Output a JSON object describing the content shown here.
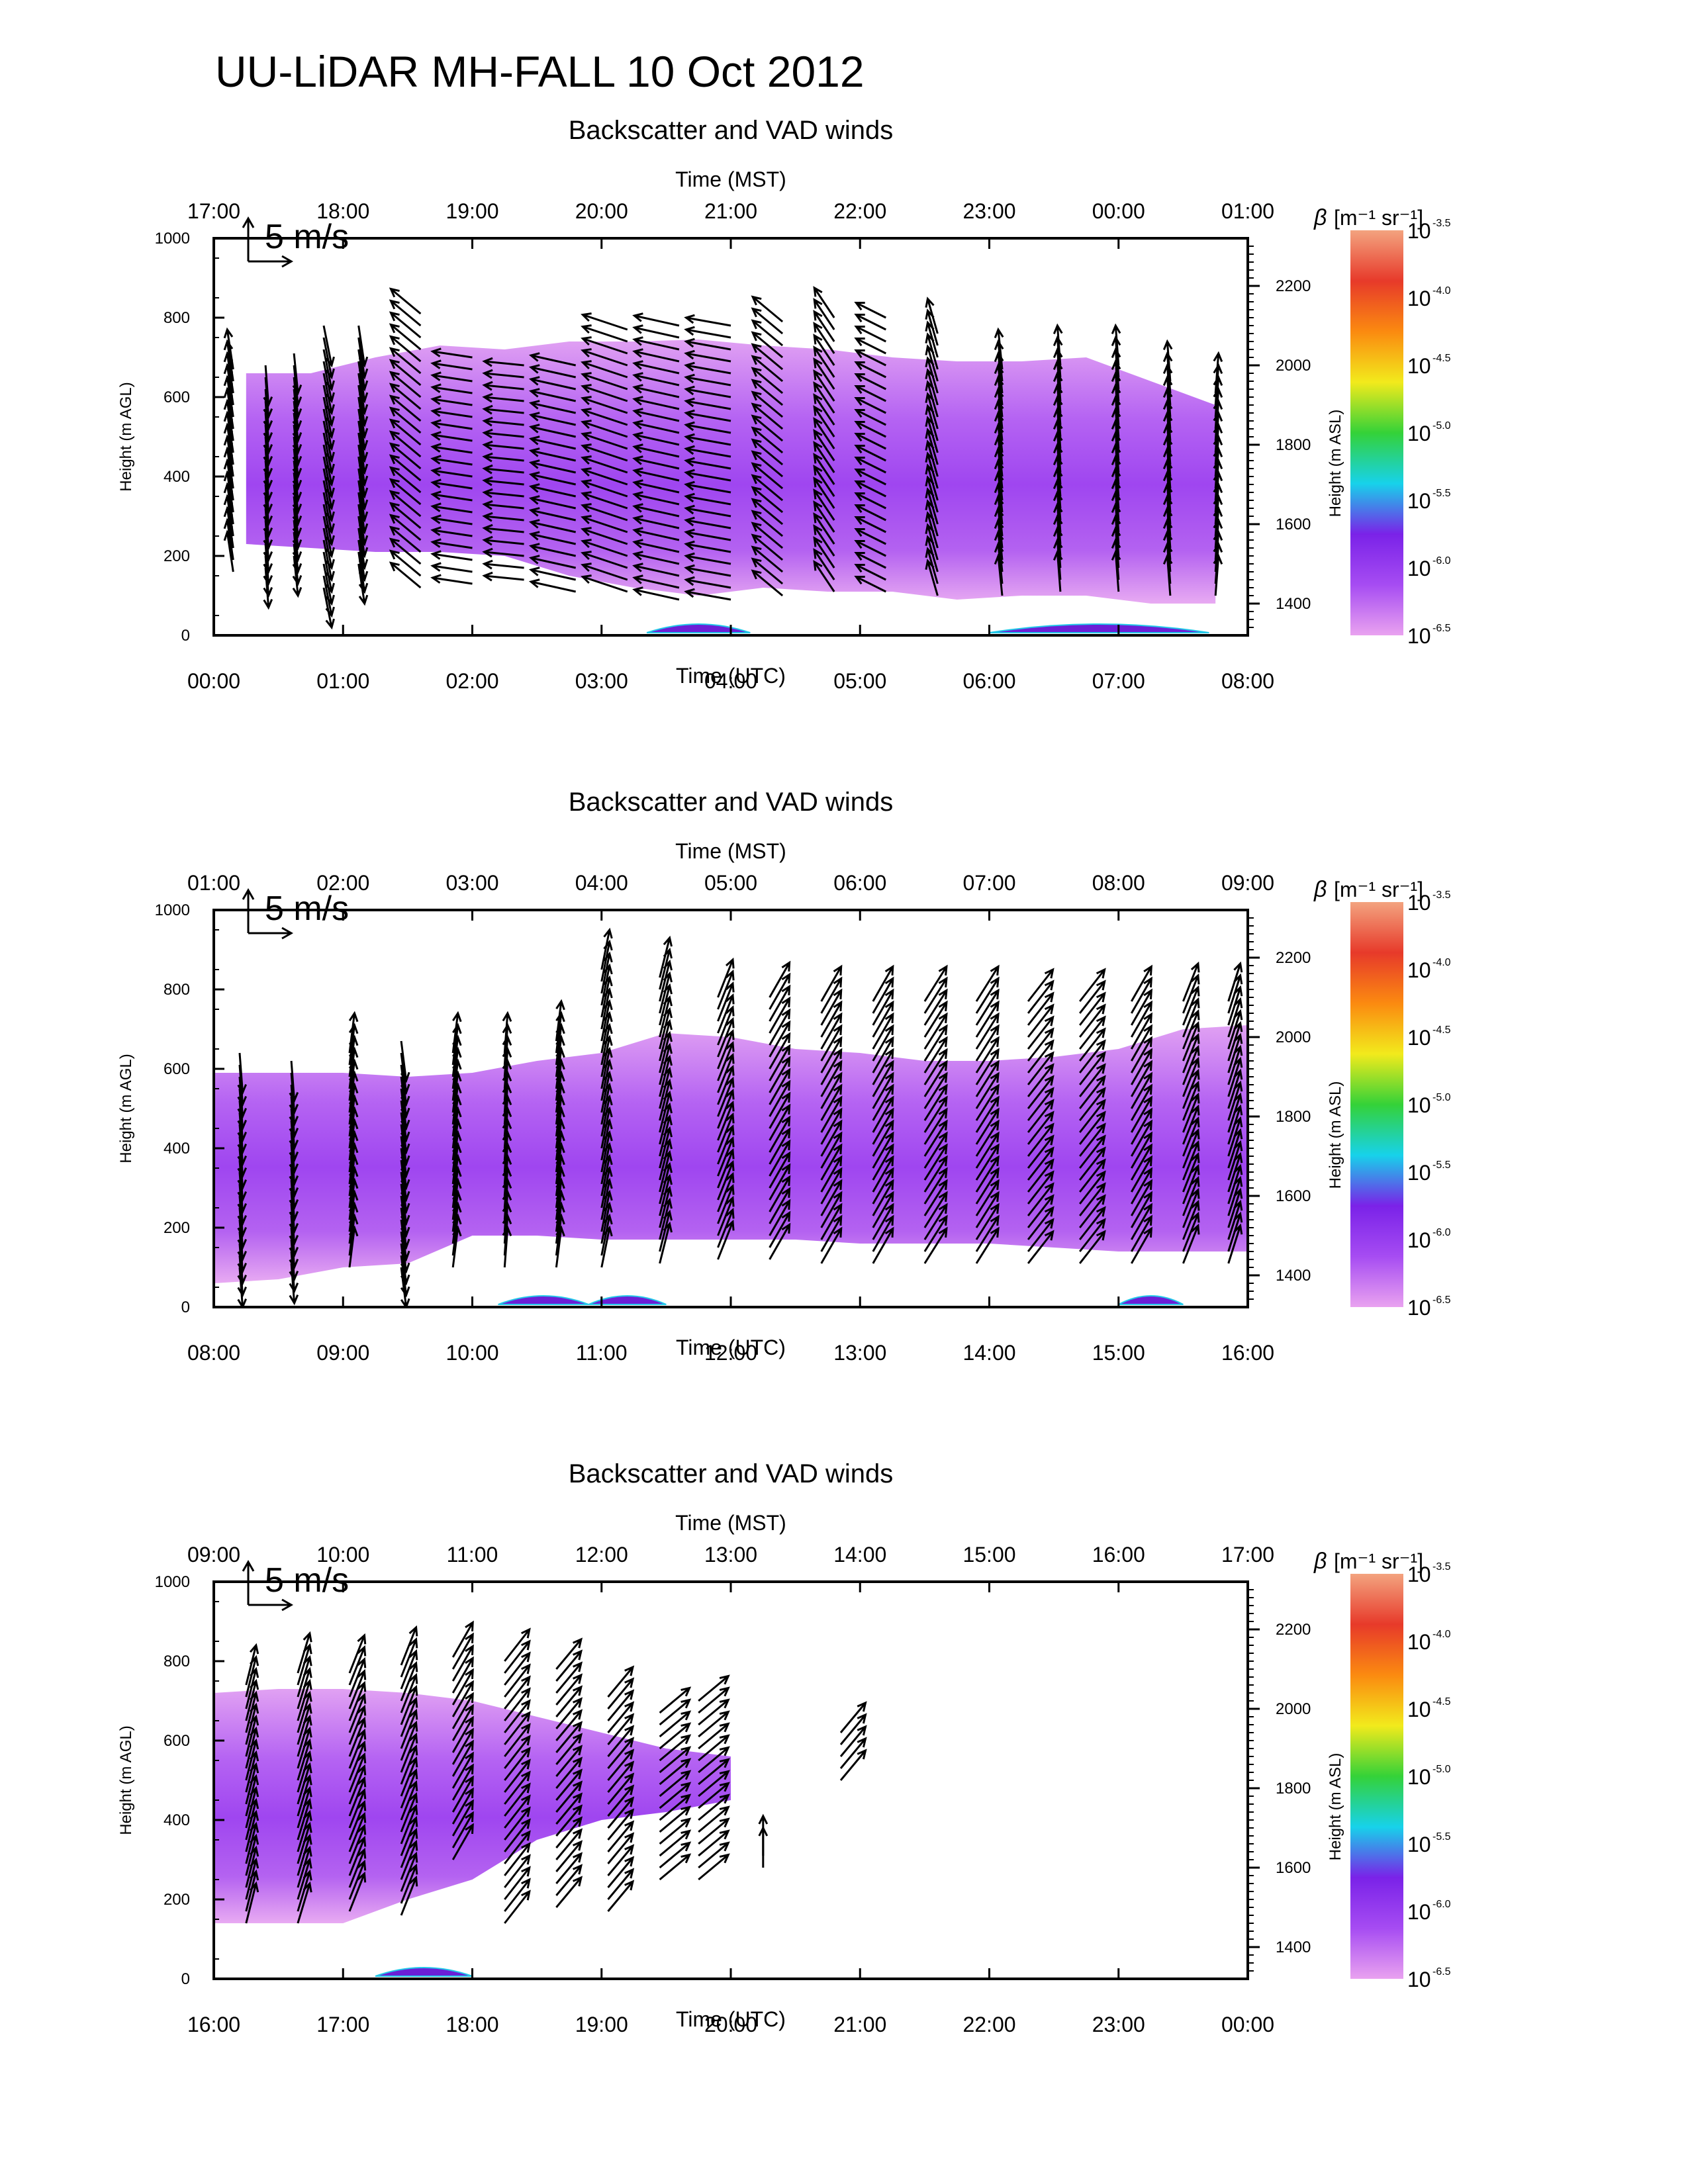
{
  "main_title": "UU-LiDAR MH-FALL 10 Oct 2012",
  "colorbar": {
    "label_beta": "β",
    "label_units": "[m⁻¹ sr⁻¹]",
    "tick_labels": [
      {
        "base": "10",
        "exp": "-3.5"
      },
      {
        "base": "10",
        "exp": "-4.0"
      },
      {
        "base": "10",
        "exp": "-4.5"
      },
      {
        "base": "10",
        "exp": "-5.0"
      },
      {
        "base": "10",
        "exp": "-5.5"
      },
      {
        "base": "10",
        "exp": "-6.0"
      },
      {
        "base": "10",
        "exp": "-6.5"
      }
    ],
    "colors": [
      "#f3a37f",
      "#e73a2a",
      "#fb8a10",
      "#f2ea1c",
      "#34d238",
      "#17d2ea",
      "#7a22e8",
      "#a64cf2",
      "#e9a2f0"
    ]
  },
  "chart_data": [
    {
      "type": "heatmap",
      "title": "Backscatter and VAD winds",
      "xlabel": "Time (UTC)",
      "xlabel_top": "Time (MST)",
      "ylabel": "Height (m AGL)",
      "ylabel_right": "Height (m ASL)",
      "scale_arrow_label": "5 m/s",
      "xlim_utc_hours": [
        0,
        8
      ],
      "ylim": [
        0,
        1000
      ],
      "utc_ticks": [
        "00:00",
        "01:00",
        "02:00",
        "03:00",
        "04:00",
        "05:00",
        "06:00",
        "07:00",
        "08:00"
      ],
      "mst_ticks": [
        "17:00",
        "18:00",
        "19:00",
        "20:00",
        "21:00",
        "22:00",
        "23:00",
        "00:00",
        "01:00"
      ],
      "y_ticks": [
        0,
        200,
        400,
        600,
        800,
        1000
      ],
      "asl_ticks": [
        1400,
        1600,
        1800,
        2000,
        2200
      ],
      "asl_offset_m": 1320,
      "layer_time": [
        0.25,
        0.75,
        1.25,
        1.75,
        2.25,
        2.75,
        3.25,
        3.75,
        4.25,
        4.75,
        5.25,
        5.75,
        6.25,
        6.75,
        7.25,
        7.75
      ],
      "layer_top": [
        660,
        660,
        700,
        730,
        720,
        740,
        740,
        745,
        730,
        720,
        700,
        690,
        690,
        700,
        640,
        580
      ],
      "layer_bottom": [
        230,
        220,
        210,
        210,
        200,
        150,
        120,
        100,
        120,
        110,
        110,
        90,
        100,
        100,
        80,
        80
      ],
      "wind_columns": [
        {
          "t": 0.15,
          "z0": 160,
          "z1": 680,
          "u": -0.6,
          "v": 4.0
        },
        {
          "t": 0.4,
          "z0": 170,
          "z1": 680,
          "u": 0.3,
          "v": -4.0
        },
        {
          "t": 0.62,
          "z0": 200,
          "z1": 720,
          "u": 0.4,
          "v": -4.0
        },
        {
          "t": 0.85,
          "z0": 120,
          "z1": 800,
          "u": 0.8,
          "v": -4.0
        },
        {
          "t": 1.12,
          "z0": 180,
          "z1": 800,
          "u": 0.6,
          "v": -4.0
        },
        {
          "t": 1.6,
          "z0": 120,
          "z1": 820,
          "u": -3.0,
          "v": 2.5
        },
        {
          "t": 2.0,
          "z0": 130,
          "z1": 700,
          "u": -4.0,
          "v": 0.6
        },
        {
          "t": 2.4,
          "z0": 140,
          "z1": 700,
          "u": -4.0,
          "v": 0.4
        },
        {
          "t": 2.8,
          "z0": 110,
          "z1": 700,
          "u": -4.5,
          "v": 1.0
        },
        {
          "t": 3.2,
          "z0": 110,
          "z1": 790,
          "u": -4.5,
          "v": 1.5
        },
        {
          "t": 3.6,
          "z0": 90,
          "z1": 790,
          "u": -4.5,
          "v": 1.0
        },
        {
          "t": 4.0,
          "z0": 90,
          "z1": 780,
          "u": -4.5,
          "v": 0.8
        },
        {
          "t": 4.4,
          "z0": 100,
          "z1": 800,
          "u": -3.0,
          "v": 2.5
        },
        {
          "t": 4.8,
          "z0": 110,
          "z1": 800,
          "u": -2.0,
          "v": 3.0
        },
        {
          "t": 5.2,
          "z0": 110,
          "z1": 800,
          "u": -3.0,
          "v": 1.5
        },
        {
          "t": 5.6,
          "z0": 100,
          "z1": 760,
          "u": -1.0,
          "v": 3.5
        },
        {
          "t": 6.1,
          "z0": 100,
          "z1": 680,
          "u": -0.4,
          "v": 4.0
        },
        {
          "t": 6.55,
          "z0": 110,
          "z1": 680,
          "u": -0.3,
          "v": 4.0
        },
        {
          "t": 7.0,
          "z0": 110,
          "z1": 680,
          "u": -0.3,
          "v": 4.0
        },
        {
          "t": 7.4,
          "z0": 100,
          "z1": 640,
          "u": -0.3,
          "v": 4.0
        },
        {
          "t": 7.75,
          "z0": 100,
          "z1": 620,
          "u": 0.3,
          "v": 4.0
        }
      ],
      "surface_blobs": [
        {
          "t0": 3.35,
          "t1": 4.15
        },
        {
          "t0": 6.0,
          "t1": 7.7
        }
      ]
    },
    {
      "type": "heatmap",
      "title": "Backscatter and VAD winds",
      "xlabel": "Time (UTC)",
      "xlabel_top": "Time (MST)",
      "ylabel": "Height (m AGL)",
      "ylabel_right": "Height (m ASL)",
      "scale_arrow_label": "5 m/s",
      "xlim_utc_hours": [
        8,
        16
      ],
      "ylim": [
        0,
        1000
      ],
      "utc_ticks": [
        "08:00",
        "09:00",
        "10:00",
        "11:00",
        "12:00",
        "13:00",
        "14:00",
        "15:00",
        "16:00"
      ],
      "mst_ticks": [
        "01:00",
        "02:00",
        "03:00",
        "04:00",
        "05:00",
        "06:00",
        "07:00",
        "08:00",
        "09:00"
      ],
      "y_ticks": [
        0,
        200,
        400,
        600,
        800,
        1000
      ],
      "asl_ticks": [
        1400,
        1600,
        1800,
        2000,
        2200
      ],
      "asl_offset_m": 1320,
      "layer_time": [
        8.0,
        8.5,
        9.0,
        9.5,
        10.0,
        10.5,
        11.0,
        11.5,
        12.0,
        12.5,
        13.0,
        13.5,
        14.0,
        14.5,
        15.0,
        15.5,
        16.0
      ],
      "layer_top": [
        590,
        590,
        590,
        580,
        590,
        620,
        640,
        690,
        680,
        650,
        640,
        620,
        620,
        630,
        650,
        700,
        710
      ],
      "layer_bottom": [
        60,
        70,
        100,
        110,
        180,
        180,
        170,
        170,
        170,
        170,
        160,
        160,
        160,
        150,
        140,
        140,
        140
      ],
      "wind_columns": [
        {
          "t": 8.2,
          "z0": 100,
          "z1": 660,
          "u": 0.3,
          "v": -4.0
        },
        {
          "t": 8.6,
          "z0": 110,
          "z1": 640,
          "u": 0.3,
          "v": -4.0
        },
        {
          "t": 9.05,
          "z0": 100,
          "z1": 660,
          "u": 0.5,
          "v": 4.0
        },
        {
          "t": 9.45,
          "z0": 100,
          "z1": 670,
          "u": 0.5,
          "v": -4.0
        },
        {
          "t": 9.85,
          "z0": 100,
          "z1": 650,
          "u": 0.5,
          "v": 4.0
        },
        {
          "t": 10.25,
          "z0": 100,
          "z1": 640,
          "u": 0.3,
          "v": 4.0
        },
        {
          "t": 10.65,
          "z0": 100,
          "z1": 670,
          "u": 0.5,
          "v": 4.0
        },
        {
          "t": 11.0,
          "z0": 100,
          "z1": 850,
          "u": 0.8,
          "v": 4.0
        },
        {
          "t": 11.45,
          "z0": 110,
          "z1": 850,
          "u": 1.0,
          "v": 4.0
        },
        {
          "t": 11.9,
          "z0": 120,
          "z1": 790,
          "u": 1.5,
          "v": 3.8
        },
        {
          "t": 12.3,
          "z0": 120,
          "z1": 790,
          "u": 2.0,
          "v": 3.5
        },
        {
          "t": 12.7,
          "z0": 110,
          "z1": 770,
          "u": 2.0,
          "v": 3.5
        },
        {
          "t": 13.1,
          "z0": 110,
          "z1": 770,
          "u": 2.0,
          "v": 3.5
        },
        {
          "t": 13.5,
          "z0": 110,
          "z1": 780,
          "u": 2.2,
          "v": 3.5
        },
        {
          "t": 13.9,
          "z0": 110,
          "z1": 790,
          "u": 2.2,
          "v": 3.5
        },
        {
          "t": 14.3,
          "z0": 110,
          "z1": 780,
          "u": 2.5,
          "v": 3.2
        },
        {
          "t": 14.7,
          "z0": 110,
          "z1": 780,
          "u": 2.5,
          "v": 3.2
        },
        {
          "t": 15.1,
          "z0": 110,
          "z1": 790,
          "u": 2.0,
          "v": 3.5
        },
        {
          "t": 15.5,
          "z0": 110,
          "z1": 790,
          "u": 1.5,
          "v": 3.8
        },
        {
          "t": 15.85,
          "z0": 110,
          "z1": 780,
          "u": 1.2,
          "v": 3.8
        }
      ],
      "surface_blobs": [
        {
          "t0": 10.2,
          "t1": 10.9
        },
        {
          "t0": 10.9,
          "t1": 11.5
        },
        {
          "t0": 15.0,
          "t1": 15.5
        }
      ]
    },
    {
      "type": "heatmap",
      "title": "Backscatter and VAD winds",
      "xlabel": "Time (UTC)",
      "xlabel_top": "Time (MST)",
      "ylabel": "Height (m AGL)",
      "ylabel_right": "Height (m ASL)",
      "scale_arrow_label": "5 m/s",
      "xlim_utc_hours": [
        16,
        24
      ],
      "ylim": [
        0,
        1000
      ],
      "utc_ticks": [
        "16:00",
        "17:00",
        "18:00",
        "19:00",
        "20:00",
        "21:00",
        "22:00",
        "23:00",
        "00:00"
      ],
      "mst_ticks": [
        "09:00",
        "10:00",
        "11:00",
        "12:00",
        "13:00",
        "14:00",
        "15:00",
        "16:00",
        "17:00"
      ],
      "y_ticks": [
        0,
        200,
        400,
        600,
        800,
        1000
      ],
      "asl_ticks": [
        1400,
        1600,
        1800,
        2000,
        2200
      ],
      "asl_offset_m": 1320,
      "layer_time": [
        16.0,
        16.5,
        17.0,
        17.5,
        18.0,
        18.5,
        19.0,
        19.5,
        20.0
      ],
      "layer_top": [
        720,
        730,
        730,
        720,
        700,
        660,
        620,
        580,
        560
      ],
      "layer_bottom": [
        140,
        140,
        140,
        200,
        250,
        350,
        400,
        420,
        450
      ],
      "wind_columns": [
        {
          "t": 16.25,
          "z0": 140,
          "z1": 760,
          "u": 1.0,
          "v": 4.0
        },
        {
          "t": 16.65,
          "z0": 140,
          "z1": 780,
          "u": 1.2,
          "v": 4.0
        },
        {
          "t": 17.05,
          "z0": 170,
          "z1": 780,
          "u": 1.5,
          "v": 3.8
        },
        {
          "t": 17.45,
          "z0": 160,
          "z1": 800,
          "u": 1.5,
          "v": 3.8
        },
        {
          "t": 17.85,
          "z0": 300,
          "z1": 820,
          "u": 2.0,
          "v": 3.5
        },
        {
          "t": 18.25,
          "z0": 140,
          "z1": 820,
          "u": 2.5,
          "v": 3.2
        },
        {
          "t": 18.65,
          "z0": 180,
          "z1": 790,
          "u": 2.5,
          "v": 3.0
        },
        {
          "t": 19.05,
          "z0": 170,
          "z1": 720,
          "u": 2.5,
          "v": 3.0
        },
        {
          "t": 19.45,
          "z0": 250,
          "z1": 690,
          "u": 3.0,
          "v": 2.5
        },
        {
          "t": 19.75,
          "z0": 250,
          "z1": 700,
          "u": 3.0,
          "v": 2.5
        },
        {
          "t": 20.25,
          "z0": 280,
          "z1": 330,
          "u": 0.0,
          "v": 4.0
        },
        {
          "t": 20.85,
          "z0": 500,
          "z1": 630,
          "u": 2.5,
          "v": 3.0
        }
      ],
      "surface_blobs": [
        {
          "t0": 17.25,
          "t1": 18.0
        }
      ]
    }
  ]
}
